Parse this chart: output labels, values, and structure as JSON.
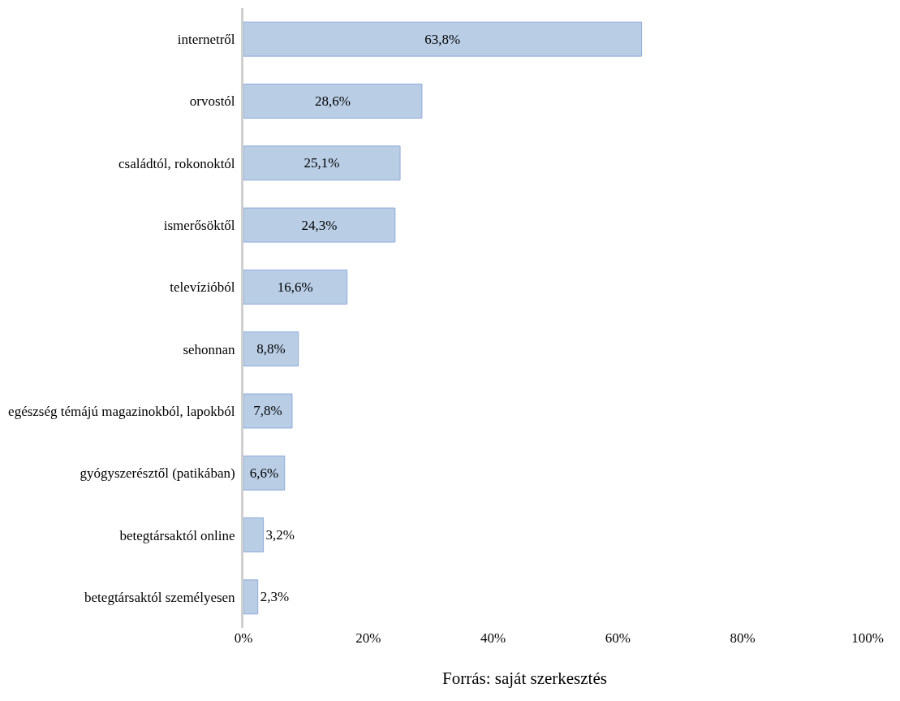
{
  "chart_data": {
    "type": "bar",
    "orientation": "horizontal",
    "categories": [
      "internetről",
      "orvostól",
      "családtól, rokonoktól",
      "ismerősöktől",
      "televízióból",
      "sehonnan",
      "egészség témájú magazinokból, lapokból",
      "gyógyszerésztől (patikában)",
      "betegtársaktól online",
      "betegtársaktól személyesen"
    ],
    "values": [
      63.8,
      28.6,
      25.1,
      24.3,
      16.6,
      8.8,
      7.8,
      6.6,
      3.2,
      2.3
    ],
    "value_labels": [
      "63,8%",
      "28,6%",
      "25,1%",
      "24,3%",
      "16,6%",
      "8,8%",
      "7,8%",
      "6,6%",
      "3,2%",
      "2,3%"
    ],
    "color": "#b9cde5",
    "xlim": [
      0,
      100
    ],
    "xticks": [
      {
        "value": 0,
        "label": "0%"
      },
      {
        "value": 20,
        "label": "20%"
      },
      {
        "value": 40,
        "label": "40%"
      },
      {
        "value": 60,
        "label": "60%"
      },
      {
        "value": 80,
        "label": "80%"
      },
      {
        "value": 100,
        "label": "100%"
      }
    ],
    "legend": false,
    "annotations": [
      "Forrás: saját szerkesztés"
    ]
  }
}
